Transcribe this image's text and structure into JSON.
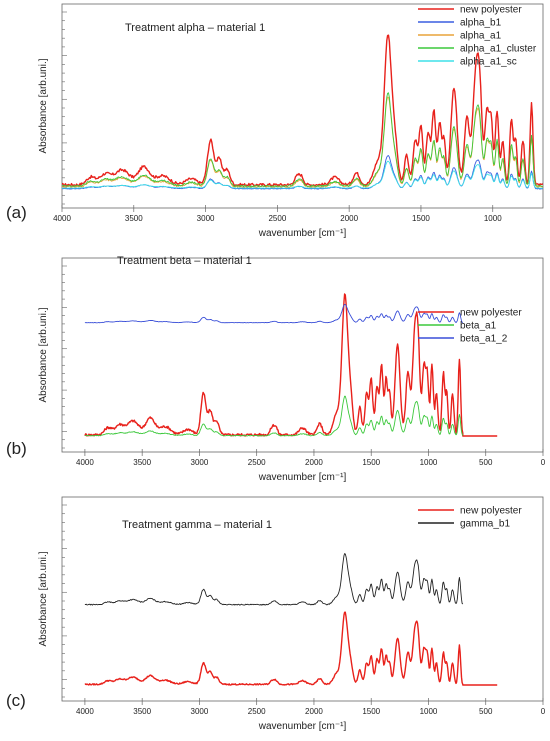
{
  "chart_data": [
    {
      "panel_label": "(a)",
      "type": "line",
      "title": "Treatment alpha – material 1",
      "xlabel": "wavenumber [cm⁻¹]",
      "ylabel": "Absorbance [arb.uni.]",
      "xlim": [
        4000,
        650
      ],
      "x_ticks": [
        4000,
        3500,
        3000,
        2500,
        2000,
        1500,
        1000
      ],
      "y_ticks_labeled": false,
      "legend_position": "top-right",
      "grid": false,
      "series": [
        {
          "name": "new polyester",
          "color": "#e8211b",
          "base": 0.04,
          "scale": 1.0
        },
        {
          "name": "alpha_b1",
          "color": "#3a5fe0",
          "base": 0.02,
          "scale": 0.22
        },
        {
          "name": "alpha_a1",
          "color": "#e8a33a",
          "base": 0.03,
          "scale": 0.6
        },
        {
          "name": "alpha_a1_cluster",
          "color": "#3cc83c",
          "base": 0.035,
          "scale": 0.62
        },
        {
          "name": "alpha_a1_sc",
          "color": "#3fe0e8",
          "base": 0.025,
          "scale": 0.18
        }
      ]
    },
    {
      "panel_label": "(b)",
      "type": "line",
      "title": "Treatment beta – material 1",
      "xlabel": "wavenumber [cm⁻¹]",
      "ylabel": "Absorbance [arb.uni.]",
      "xlim": [
        4200,
        0
      ],
      "x_ticks": [
        4000,
        3500,
        3000,
        2500,
        2000,
        1500,
        1000,
        500,
        0
      ],
      "y_ticks_labeled": false,
      "legend_position": "right",
      "grid": false,
      "series": [
        {
          "name": "new polyester",
          "color": "#e8211b",
          "base": 0.0,
          "scale": 1.0,
          "tail_to": 400
        },
        {
          "name": "beta_a1",
          "color": "#3cc83c",
          "base": 0.0,
          "scale": 0.28
        },
        {
          "name": "beta_a1_2",
          "color": "#3a4fd8",
          "base": 0.82,
          "scale": 0.13
        }
      ]
    },
    {
      "panel_label": "(c)",
      "type": "line",
      "title": "Treatment gamma – material 1",
      "xlabel": "wavenumber [cm⁻¹]",
      "ylabel": "Absorbance [arb.uni.]",
      "xlim": [
        4200,
        0
      ],
      "x_ticks": [
        4000,
        3500,
        3000,
        2500,
        2000,
        1500,
        1000,
        500,
        0
      ],
      "y_ticks_labeled": false,
      "legend_position": "top-right",
      "grid": false,
      "series": [
        {
          "name": "new polyester",
          "color": "#e8211b",
          "base": 0.0,
          "scale": 0.48,
          "tail_to": 400
        },
        {
          "name": "gamma_b1",
          "color": "#222222",
          "base": 0.54,
          "scale": 0.34
        }
      ]
    }
  ],
  "spectrum_peaks": [
    {
      "x": 3800,
      "h": 0.05,
      "w": 30
    },
    {
      "x": 3700,
      "h": 0.07,
      "w": 40
    },
    {
      "x": 3580,
      "h": 0.1,
      "w": 50
    },
    {
      "x": 3430,
      "h": 0.12,
      "w": 40
    },
    {
      "x": 3300,
      "h": 0.06,
      "w": 50
    },
    {
      "x": 3100,
      "h": 0.04,
      "w": 40
    },
    {
      "x": 2965,
      "h": 0.3,
      "w": 22
    },
    {
      "x": 2905,
      "h": 0.17,
      "w": 20
    },
    {
      "x": 2850,
      "h": 0.1,
      "w": 20
    },
    {
      "x": 2360,
      "h": 0.06,
      "w": 20
    },
    {
      "x": 2330,
      "h": 0.04,
      "w": 15
    },
    {
      "x": 2100,
      "h": 0.05,
      "w": 30
    },
    {
      "x": 1950,
      "h": 0.08,
      "w": 22
    },
    {
      "x": 1800,
      "h": 0.15,
      "w": 30
    },
    {
      "x": 1730,
      "h": 1.0,
      "w": 25
    },
    {
      "x": 1680,
      "h": 0.25,
      "w": 20
    },
    {
      "x": 1600,
      "h": 0.2,
      "w": 15
    },
    {
      "x": 1540,
      "h": 0.3,
      "w": 15
    },
    {
      "x": 1500,
      "h": 0.4,
      "w": 14
    },
    {
      "x": 1450,
      "h": 0.35,
      "w": 14
    },
    {
      "x": 1410,
      "h": 0.5,
      "w": 14
    },
    {
      "x": 1370,
      "h": 0.4,
      "w": 12
    },
    {
      "x": 1340,
      "h": 0.3,
      "w": 12
    },
    {
      "x": 1270,
      "h": 0.65,
      "w": 22
    },
    {
      "x": 1180,
      "h": 0.45,
      "w": 18
    },
    {
      "x": 1120,
      "h": 0.7,
      "w": 20
    },
    {
      "x": 1090,
      "h": 0.55,
      "w": 16
    },
    {
      "x": 1040,
      "h": 0.5,
      "w": 15
    },
    {
      "x": 1010,
      "h": 0.4,
      "w": 12
    },
    {
      "x": 970,
      "h": 0.5,
      "w": 12
    },
    {
      "x": 930,
      "h": 0.3,
      "w": 12
    },
    {
      "x": 870,
      "h": 0.45,
      "w": 12
    },
    {
      "x": 840,
      "h": 0.3,
      "w": 10
    },
    {
      "x": 790,
      "h": 0.3,
      "w": 12
    },
    {
      "x": 730,
      "h": 0.55,
      "w": 10
    }
  ]
}
